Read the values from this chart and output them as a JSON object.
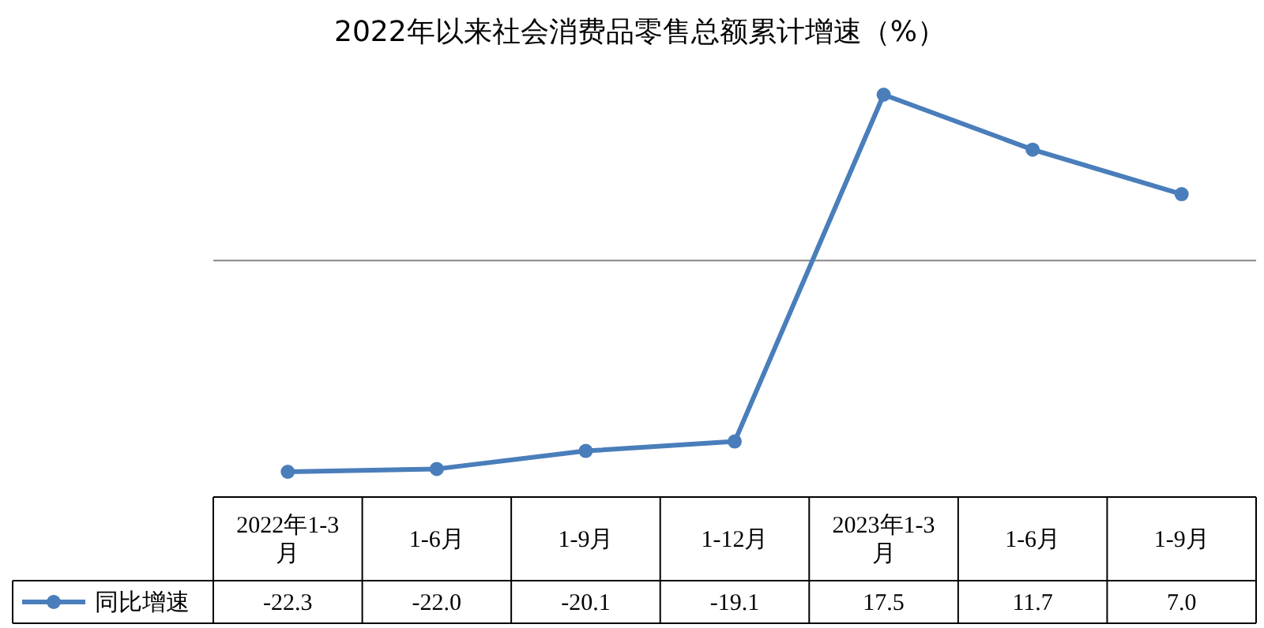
{
  "chart_data": {
    "type": "line",
    "title": "2022年以来社会消费品零售总额累计增速（%）",
    "categories": [
      "2022年1-3月",
      "1-6月",
      "1-9月",
      "1-12月",
      "2023年1-3月",
      "1-6月",
      "1-9月"
    ],
    "series": [
      {
        "name": "同比增速",
        "color": "#4a7ebb",
        "values": [
          -22.3,
          -22.0,
          -20.1,
          -19.1,
          17.5,
          11.7,
          7.0
        ],
        "value_labels": [
          "-22.3",
          "-22.0",
          "-20.1",
          "-19.1",
          "17.5",
          "11.7",
          "7.0"
        ]
      }
    ],
    "marker": "circle",
    "legend": "bottom"
  }
}
